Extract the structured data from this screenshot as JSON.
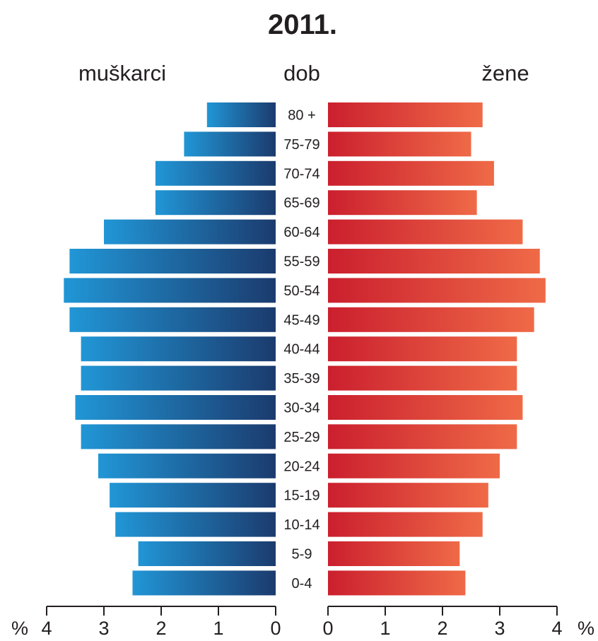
{
  "chart_data": {
    "type": "bar",
    "title": "2011.",
    "center_header": "dob",
    "unit_label": "%",
    "categories": [
      "80 +",
      "75-79",
      "70-74",
      "65-69",
      "60-64",
      "55-59",
      "50-54",
      "45-49",
      "40-44",
      "35-39",
      "30-34",
      "25-29",
      "20-24",
      "15-19",
      "10-14",
      "5-9",
      "0-4"
    ],
    "series": [
      {
        "name": "muškarci",
        "side": "left",
        "color_start": "#2196d6",
        "color_end": "#1b3b6e",
        "values": [
          1.2,
          1.6,
          2.1,
          2.1,
          3.0,
          3.6,
          3.7,
          3.6,
          3.4,
          3.4,
          3.5,
          3.4,
          3.1,
          2.9,
          2.8,
          2.4,
          2.5
        ]
      },
      {
        "name": "žene",
        "side": "right",
        "color_start": "#cb1f2e",
        "color_end": "#ef6a47",
        "values": [
          2.7,
          2.5,
          2.9,
          2.6,
          3.4,
          3.7,
          3.8,
          3.6,
          3.3,
          3.3,
          3.4,
          3.3,
          3.0,
          2.8,
          2.7,
          2.3,
          2.4
        ]
      }
    ],
    "xlim": [
      0,
      4
    ],
    "ticks_left": [
      "4",
      "3",
      "2",
      "1",
      "0"
    ],
    "ticks_right": [
      "0",
      "1",
      "2",
      "3",
      "4"
    ],
    "grid": false
  }
}
